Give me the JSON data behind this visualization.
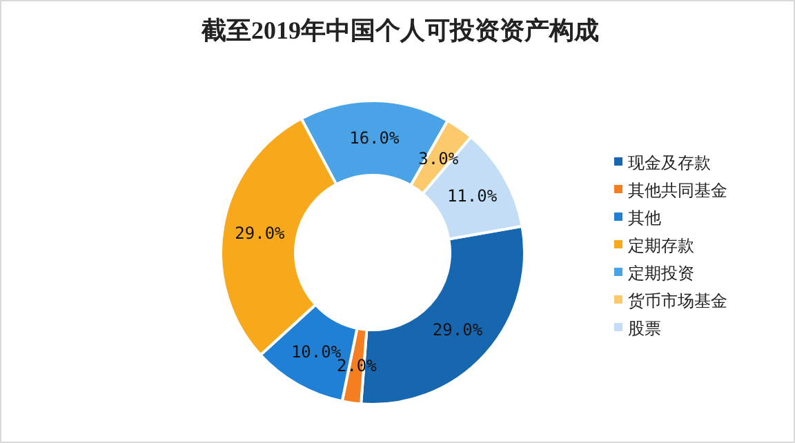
{
  "chart_data": {
    "type": "donut",
    "title": "截至2019年中国个人可投资资产构成",
    "categories": [
      "现金及存款",
      "其他共同基金",
      "其他",
      "定期存款",
      "定期投资",
      "货币市场基金",
      "股票"
    ],
    "values": [
      29,
      2,
      10,
      29,
      16,
      3,
      11
    ],
    "colors": [
      "#1766b0",
      "#f57f20",
      "#1f80d6",
      "#f8a81b",
      "#4aa3e6",
      "#fcc96c",
      "#c2ddf5"
    ],
    "value_labels": [
      "29.0%",
      "2.0%",
      "10.0%",
      "29.0%",
      "16.0%",
      "3.0%",
      "11.0%"
    ],
    "legend": "right"
  }
}
